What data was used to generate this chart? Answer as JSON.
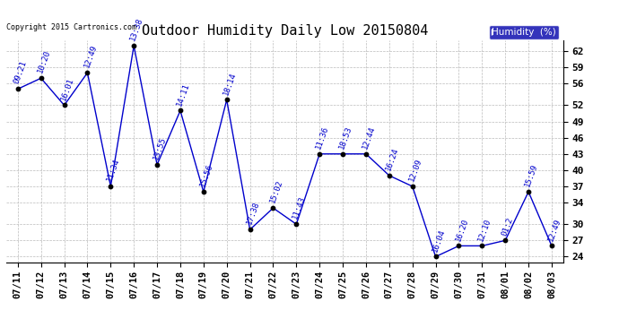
{
  "title": "Outdoor Humidity Daily Low 20150804",
  "copyright": "Copyright 2015 Cartronics.com",
  "legend_label": "Humidity  (%)",
  "x_labels": [
    "07/11",
    "07/12",
    "07/13",
    "07/14",
    "07/15",
    "07/16",
    "07/17",
    "07/18",
    "07/19",
    "07/20",
    "07/21",
    "07/22",
    "07/23",
    "07/24",
    "07/25",
    "07/26",
    "07/27",
    "07/28",
    "07/29",
    "07/30",
    "07/31",
    "08/01",
    "08/02",
    "08/03"
  ],
  "y_values": [
    55,
    57,
    52,
    58,
    37,
    63,
    41,
    51,
    36,
    53,
    29,
    33,
    30,
    43,
    43,
    43,
    39,
    37,
    24,
    26,
    26,
    27,
    36,
    26
  ],
  "time_labels": [
    "09:21",
    "10:20",
    "16:01",
    "12:49",
    "11:34",
    "13:38",
    "13:55",
    "14:11",
    "15:56",
    "18:14",
    "17:38",
    "15:02",
    "11:43",
    "11:36",
    "18:53",
    "12:44",
    "16:24",
    "12:09",
    "16:04",
    "16:20",
    "12:10",
    "01:2",
    "15:59",
    "12:49"
  ],
  "yticks": [
    24,
    27,
    30,
    34,
    37,
    40,
    43,
    46,
    49,
    52,
    56,
    59,
    62
  ],
  "ylim": [
    23,
    64
  ],
  "line_color": "#0000cc",
  "marker_color": "#000000",
  "text_color": "#0000cc",
  "background_color": "#ffffff",
  "grid_color": "#bbbbbb",
  "title_fontsize": 11,
  "label_fontsize": 6.5,
  "tick_fontsize": 8,
  "xtick_fontsize": 7.5,
  "legend_bg": "#0000aa",
  "legend_fg": "#ffffff"
}
